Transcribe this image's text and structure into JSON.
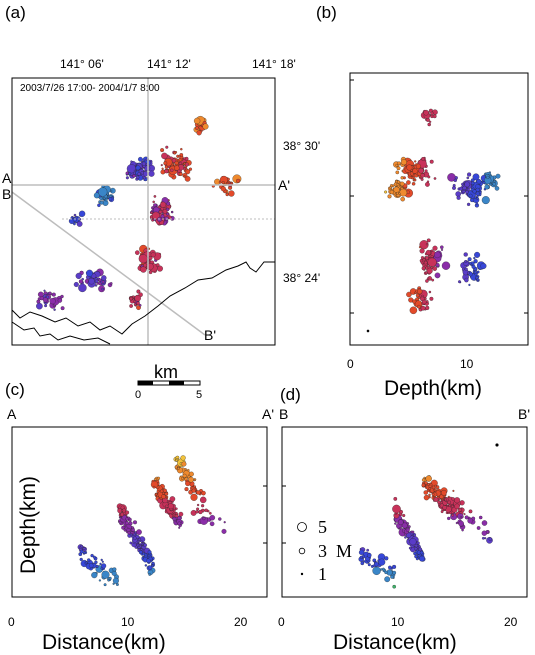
{
  "panel_labels": {
    "a": "(a)",
    "b": "(b)",
    "c": "(c)",
    "d": "(d)"
  },
  "map": {
    "lon_ticks": [
      "141° 06'",
      "141° 12'",
      "141° 18'"
    ],
    "lat_ticks": [
      "38° 30'",
      "38° 24'"
    ],
    "time_range": "2003/7/26 17:00- 2004/1/7 8:00",
    "section_labels": {
      "A": "A",
      "A_prime": "A'",
      "B": "B",
      "B_prime": "B'"
    },
    "scale_bar": {
      "unit": "km",
      "ticks": [
        "0",
        "5"
      ]
    }
  },
  "depth_panel": {
    "xlabel": "Depth(km)",
    "xticks": [
      "0",
      "10"
    ]
  },
  "section_c": {
    "xlabel": "Distance(km)",
    "ylabel": "Depth(km)",
    "xticks": [
      "0",
      "10",
      "20"
    ],
    "ends": [
      "A",
      "A'"
    ]
  },
  "section_d": {
    "xlabel": "Distance(km)",
    "xticks": [
      "0",
      "10",
      "20"
    ],
    "ends": [
      "B",
      "B'"
    ]
  },
  "magnitude_legend": {
    "values": [
      "5",
      "3",
      "1"
    ],
    "label": "M"
  },
  "chart_data": [
    {
      "type": "scatter",
      "description_key": "map",
      "x_range_lon": [
        "141° 00'",
        "141° 18'"
      ],
      "y_range_lat": [
        "38° 20'",
        "38° 33'"
      ],
      "color_scale": "depth"
    },
    {
      "type": "scatter",
      "description_key": "depth_panel",
      "xlim": [
        0,
        15
      ],
      "color_scale": "depth"
    },
    {
      "type": "scatter",
      "description_key": "section_c",
      "xlim": [
        0,
        22
      ],
      "color_scale": "depth",
      "clusters": [
        {
          "distance": [
            6,
            9
          ],
          "depth": [
            9,
            12
          ]
        },
        {
          "distance": [
            9,
            12
          ],
          "depth": [
            6,
            10
          ]
        },
        {
          "distance": [
            12,
            14
          ],
          "depth": [
            4,
            7
          ]
        },
        {
          "distance": [
            14,
            17
          ],
          "depth": [
            2,
            5
          ]
        }
      ]
    },
    {
      "type": "scatter",
      "description_key": "section_d",
      "xlim": [
        0,
        22
      ],
      "color_scale": "depth",
      "clusters": [
        {
          "distance": [
            7,
            10
          ],
          "depth": [
            9,
            12
          ]
        },
        {
          "distance": [
            10,
            12
          ],
          "depth": [
            6,
            10
          ]
        },
        {
          "distance": [
            12,
            16
          ],
          "depth": [
            4,
            7
          ]
        }
      ]
    }
  ],
  "colors": {
    "shallow": "#f2c23a",
    "mid1": "#e34a2a",
    "mid2": "#8a2da8",
    "mid3": "#3747d8",
    "deep": "#3fb36a",
    "frame": "#000000",
    "grid": "#bdbdbd"
  }
}
